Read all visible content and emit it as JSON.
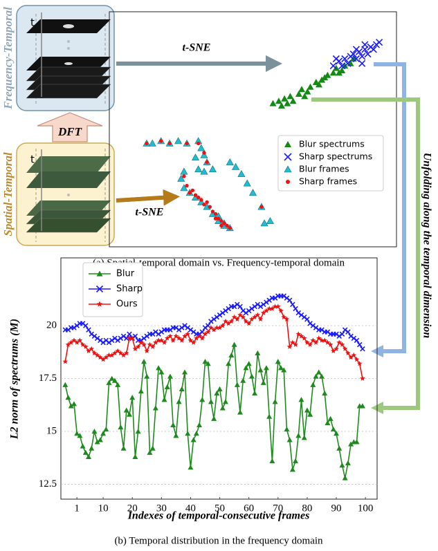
{
  "diagram": {
    "frequency_label": "Frequency-Temporal",
    "spatial_label": "Spatial-Temporal",
    "dft_label": "DFT",
    "tsne_top": "t-SNE",
    "tsne_bottom": "t-SNE",
    "t_top": "t",
    "t_bottom": "t",
    "unfolding_label": "Unfolding along the temporal dimension",
    "caption_a": "(a) Spatial-temporal domain vs. Frequency-temporal domain",
    "caption_b": "(b) Temporal distribution in the frequency domain"
  },
  "chart_data": [
    {
      "type": "scatter",
      "xlim": [
        0,
        100
      ],
      "ylim": [
        0,
        100
      ],
      "legend": "center right",
      "series": [
        {
          "name": "Blur spectrums",
          "color": "#138a13",
          "marker": "triangle",
          "x": [
            57,
            59,
            60,
            61,
            63,
            64,
            66,
            67,
            69,
            70,
            72,
            73,
            75,
            76,
            78,
            79,
            81,
            82,
            84,
            85,
            62,
            68,
            74,
            80
          ],
          "y": [
            61,
            62,
            60,
            63,
            64,
            62,
            65,
            67,
            66,
            68,
            70,
            69,
            72,
            73,
            74,
            76,
            75,
            77,
            78,
            80,
            61,
            64,
            71,
            74
          ]
        },
        {
          "name": "Sharp spectrums",
          "color": "#1a1aff",
          "marker": "x",
          "x": [
            78,
            80,
            82,
            83,
            85,
            86,
            87,
            88,
            89,
            90,
            91,
            92,
            93,
            84,
            81,
            86,
            89,
            94,
            79,
            88
          ],
          "y": [
            77,
            79,
            80,
            78,
            82,
            80,
            83,
            81,
            84,
            82,
            85,
            84,
            86,
            81,
            77,
            84,
            86,
            87,
            80,
            78
          ]
        },
        {
          "name": "Blur frames",
          "color": "#21bcd0",
          "marker": "triangle",
          "x": [
            13,
            15,
            18,
            21,
            24,
            27,
            31,
            32,
            33,
            34,
            36,
            30,
            31,
            33,
            26,
            25,
            26,
            28,
            30,
            32,
            34,
            36,
            38,
            40,
            42,
            38,
            42,
            46,
            48,
            50,
            53,
            54,
            56,
            44,
            40
          ],
          "y": [
            44,
            44,
            45,
            44,
            45,
            44,
            45,
            42,
            39,
            36,
            33,
            38,
            33,
            32,
            32,
            29,
            25,
            23,
            21,
            19,
            17,
            14,
            11,
            9,
            8,
            13,
            36,
            31,
            27,
            23,
            17,
            10,
            11,
            34,
            10
          ]
        },
        {
          "name": "Sharp frames",
          "color": "#ee1111",
          "marker": "circle",
          "x": [
            13,
            18,
            21,
            27,
            31,
            33,
            34,
            26,
            27,
            29,
            30,
            31,
            32,
            33,
            35,
            36,
            37,
            38,
            39,
            40,
            41,
            42,
            28,
            34,
            37,
            39,
            53
          ],
          "y": [
            44,
            45,
            44,
            44,
            44,
            40,
            36,
            30,
            26,
            24,
            22,
            21,
            20,
            18,
            17,
            15,
            14,
            12,
            11,
            10,
            9,
            8,
            23,
            19,
            12,
            9,
            17
          ]
        }
      ]
    },
    {
      "type": "line",
      "xlabel": "Indexes of temporal-consecutive frames",
      "ylabel": "L2 norm of spectrums (M)",
      "x": [
        -3,
        -2,
        -1,
        0,
        1,
        2,
        3,
        4,
        5,
        6,
        7,
        8,
        9,
        10,
        11,
        12,
        13,
        14,
        15,
        16,
        17,
        18,
        19,
        20,
        21,
        22,
        23,
        24,
        25,
        26,
        27,
        28,
        29,
        30,
        31,
        32,
        33,
        34,
        35,
        36,
        37,
        38,
        39,
        40,
        41,
        42,
        43,
        44,
        45,
        46,
        47,
        48,
        49,
        50,
        51,
        52,
        53,
        54,
        55,
        56,
        57,
        58,
        59,
        60,
        61,
        62,
        63,
        64,
        65,
        66,
        67,
        68,
        69,
        70,
        71,
        72,
        73,
        74,
        75,
        76,
        77,
        78,
        79,
        80,
        81,
        82,
        83,
        84,
        85,
        86,
        87,
        88,
        89,
        90,
        91,
        92,
        93,
        94,
        95,
        96,
        97,
        98,
        99
      ],
      "xlim": [
        -4.5,
        104
      ],
      "ylim": [
        11.8,
        23.2
      ],
      "xticks": [
        1,
        10,
        20,
        30,
        40,
        50,
        60,
        70,
        80,
        90,
        100
      ],
      "yticks": [
        12.5,
        15,
        17.5,
        20
      ],
      "grid": true,
      "legend": "upper left",
      "series": [
        {
          "name": "Blur",
          "color": "#1e8a1e",
          "marker": "triangle",
          "values": [
            17.2,
            16.6,
            16.2,
            16.3,
            14.9,
            14.8,
            14.3,
            14.0,
            13.8,
            14.2,
            15.0,
            14.5,
            14.6,
            14.9,
            15.1,
            17.3,
            17.5,
            17.4,
            17.2,
            15.2,
            14.2,
            16.0,
            15.8,
            16.6,
            13.8,
            15.0,
            16.9,
            18.3,
            17.6,
            14.0,
            14.2,
            16.1,
            18.0,
            17.8,
            16.5,
            17.1,
            17.6,
            15.3,
            14.8,
            16.4,
            17.0,
            17.8,
            14.9,
            13.3,
            14.6,
            14.9,
            15.3,
            16.5,
            18.3,
            18.2,
            16.4,
            15.6,
            16.8,
            17.0,
            16.1,
            16.4,
            18.2,
            18.6,
            19.1,
            17.2,
            15.9,
            17.4,
            18.0,
            18.2,
            17.6,
            16.8,
            18.7,
            17.9,
            17.3,
            18.0,
            15.7,
            13.6,
            16.4,
            18.3,
            18.0,
            17.9,
            15.1,
            14.6,
            13.2,
            13.6,
            14.8,
            16.5,
            14.7,
            16.0,
            15.8,
            17.2,
            17.6,
            17.8,
            17.6,
            16.8,
            15.4,
            15.6,
            15.1,
            14.9,
            14.2,
            13.4,
            12.8,
            13.5,
            14.4,
            14.5,
            14.5,
            16.2,
            16.2
          ]
        },
        {
          "name": "Sharp",
          "color": "#1a1aff",
          "marker": "x",
          "values": [
            19.8,
            19.8,
            19.9,
            19.9,
            20.0,
            20.1,
            20.1,
            20.0,
            19.8,
            19.6,
            19.5,
            19.4,
            19.3,
            19.2,
            19.3,
            19.2,
            19.3,
            19.4,
            19.3,
            19.4,
            19.5,
            19.4,
            19.6,
            19.4,
            19.5,
            19.3,
            19.3,
            19.4,
            19.5,
            19.6,
            19.6,
            19.7,
            19.6,
            19.7,
            19.8,
            19.8,
            19.8,
            19.9,
            19.9,
            19.8,
            19.9,
            20.0,
            19.9,
            19.8,
            19.7,
            19.6,
            19.6,
            19.7,
            19.9,
            20.0,
            20.2,
            20.3,
            20.4,
            20.5,
            20.6,
            20.7,
            20.8,
            20.9,
            20.9,
            21.0,
            20.9,
            20.7,
            20.6,
            20.7,
            20.8,
            20.9,
            21.0,
            20.9,
            21.0,
            21.1,
            21.2,
            21.3,
            21.3,
            21.4,
            21.4,
            21.4,
            21.3,
            21.2,
            21.0,
            20.8,
            20.6,
            20.5,
            20.4,
            20.3,
            20.1,
            20.0,
            19.9,
            19.8,
            19.8,
            19.7,
            19.7,
            19.6,
            19.6,
            19.6,
            19.5,
            19.6,
            19.8,
            19.7,
            19.5,
            19.4,
            19.3,
            19.1,
            18.9
          ]
        },
        {
          "name": "Ours",
          "color": "#ee1111",
          "marker": "star",
          "values": [
            18.3,
            19.1,
            19.2,
            19.3,
            19.2,
            19.3,
            19.1,
            19.0,
            18.8,
            18.9,
            18.7,
            18.6,
            18.5,
            18.4,
            18.5,
            18.6,
            18.6,
            18.7,
            18.8,
            18.7,
            18.6,
            18.7,
            19.4,
            19.4,
            18.9,
            19.0,
            19.2,
            19.1,
            18.8,
            19.1,
            19.0,
            19.2,
            19.3,
            19.3,
            19.2,
            19.4,
            19.5,
            19.3,
            19.5,
            19.4,
            19.3,
            19.5,
            19.6,
            19.3,
            19.2,
            19.4,
            19.5,
            19.4,
            19.6,
            19.7,
            19.9,
            19.8,
            19.9,
            19.9,
            20.0,
            20.2,
            20.1,
            20.2,
            20.4,
            20.3,
            20.5,
            20.4,
            20.2,
            20.1,
            20.3,
            20.4,
            20.5,
            20.3,
            20.6,
            20.7,
            20.8,
            20.8,
            20.9,
            20.9,
            20.7,
            20.4,
            20.3,
            19.0,
            19.2,
            19.1,
            19.6,
            19.5,
            19.4,
            19.2,
            19.1,
            19.3,
            19.2,
            19.4,
            19.3,
            19.3,
            19.2,
            19.1,
            18.8,
            18.9,
            19.2,
            19.1,
            18.9,
            18.7,
            18.5,
            18.6,
            18.4,
            18.2,
            17.5
          ]
        }
      ]
    }
  ]
}
